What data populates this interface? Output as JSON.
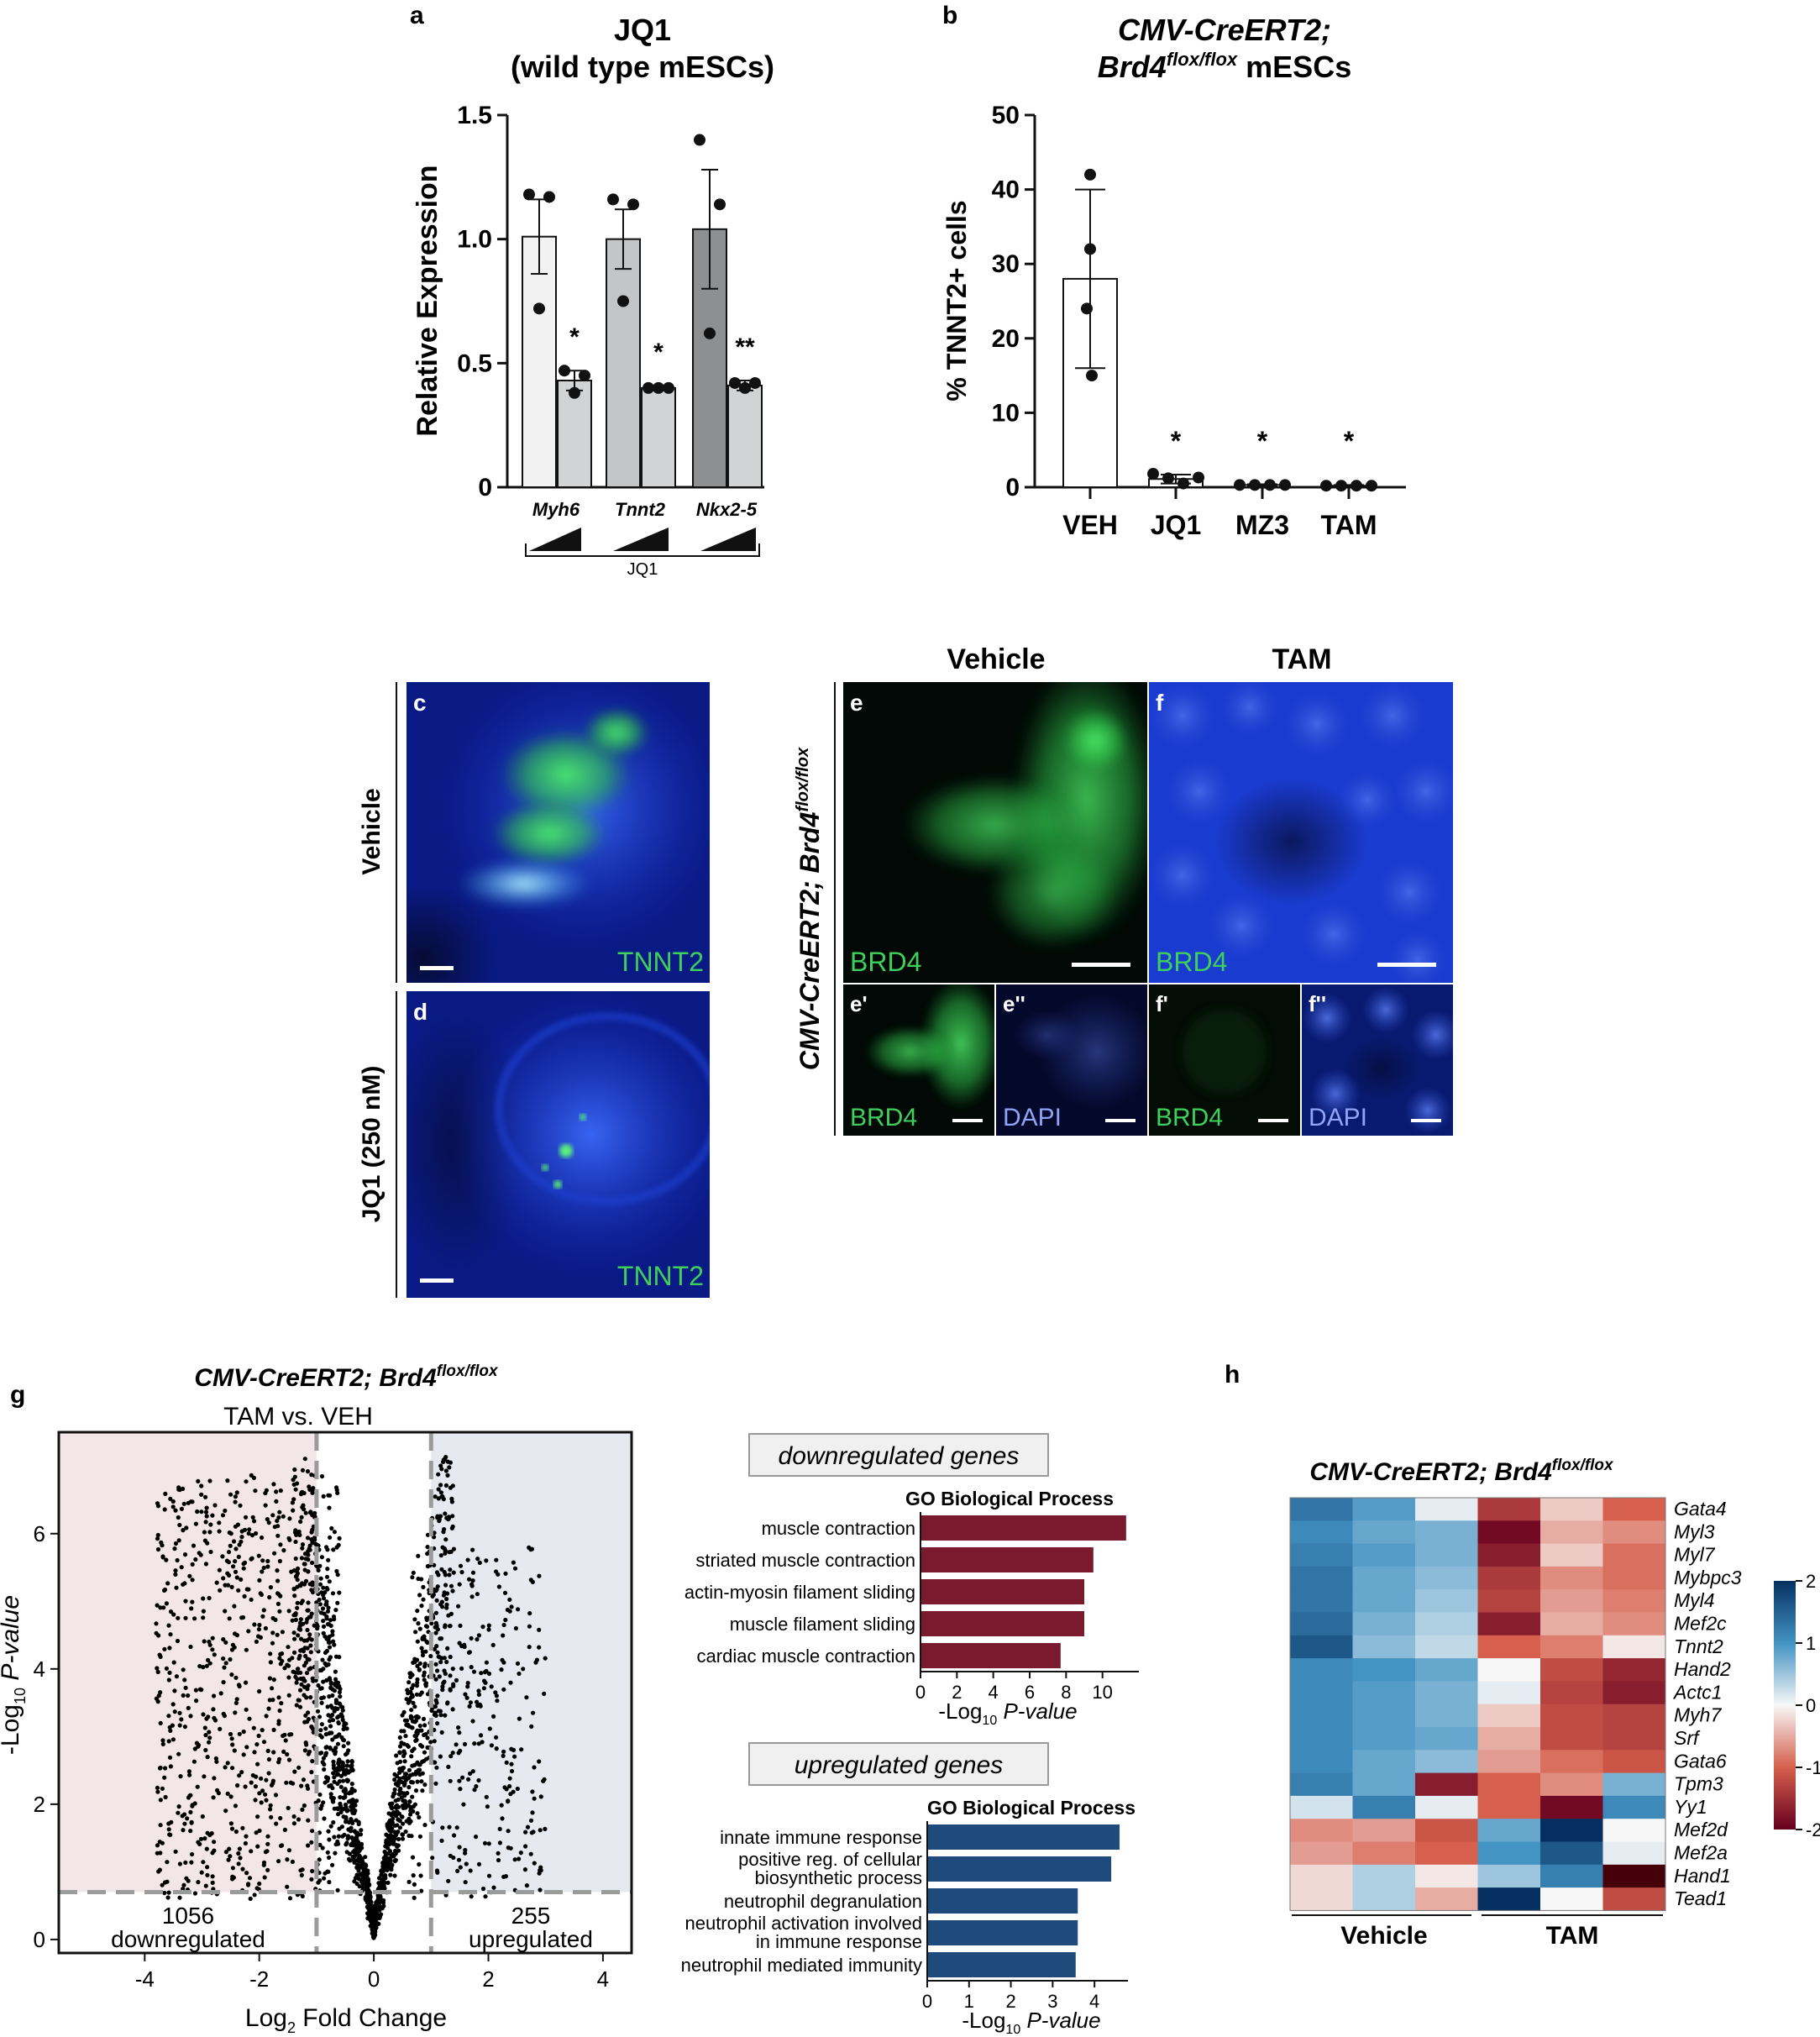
{
  "panel_a": {
    "letter": "a",
    "title_line1": "JQ1",
    "title_line2": "(wild type mESCs)",
    "ylabel": "Relative Expression",
    "yticks": [
      "0",
      "0.5",
      "1.0",
      "1.5"
    ],
    "groups": [
      "Myh6",
      "Tnnt2",
      "Nkx2-5"
    ],
    "bracket_label": "JQ1",
    "sig": [
      "*",
      "*",
      "**"
    ]
  },
  "panel_b": {
    "letter": "b",
    "title_line1": "CMV-CreERT2;",
    "title_line2_a": "Brd4",
    "title_line2_sup": "flox/flox",
    "title_line2_b": " mESCs",
    "ylabel": "% TNNT2+ cells",
    "yticks": [
      "0",
      "10",
      "20",
      "30",
      "40",
      "50"
    ],
    "categories": [
      "VEH",
      "JQ1",
      "MZ3",
      "TAM"
    ],
    "sig": [
      "*",
      "*",
      "*"
    ]
  },
  "panel_cd": {
    "c_letter": "c",
    "d_letter": "d",
    "c_side": "Vehicle",
    "d_side": "JQ1 (250 nM)",
    "stain": "TNNT2"
  },
  "panel_ef": {
    "col_vehicle": "Vehicle",
    "col_tam": "TAM",
    "side_a": "CMV-CreERT2; Brd4",
    "side_sup": "flox/flox",
    "e": "e",
    "f": "f",
    "e1": "e'",
    "e2": "e''",
    "f1": "f'",
    "f2": "f''",
    "brd4": "BRD4",
    "dapi": "DAPI"
  },
  "panel_g": {
    "letter": "g",
    "title_a": "CMV-CreERT2; Brd4",
    "title_sup": "flox/flox",
    "subtitle": "TAM vs. VEH",
    "ylabel_a": "-Log",
    "ylabel_sub": "10",
    "ylabel_b": " P-value",
    "xlabel_a": "Log",
    "xlabel_sub": "2",
    "xlabel_b": " Fold Change",
    "xticks": [
      "-4",
      "-2",
      "0",
      "2",
      "4"
    ],
    "yticks": [
      "0",
      "2",
      "4",
      "6"
    ],
    "down_count": "1056",
    "down_label": "downregulated",
    "up_count": "255",
    "up_label": "upregulated",
    "down_box": "downregulated genes",
    "up_box": "upregulated genes",
    "go_title": "GO Biological Process",
    "go_xlabel_a": "-Log",
    "go_xlabel_sub": "10",
    "go_xlabel_b": " P-value",
    "go_down_ticks": [
      "0",
      "2",
      "4",
      "6",
      "8",
      "10"
    ],
    "go_up_ticks": [
      "0",
      "1",
      "2",
      "3",
      "4"
    ],
    "go_up_labels": [
      [
        "innate immune response"
      ],
      [
        "positive reg. of cellular",
        "biosynthetic process"
      ],
      [
        "neutrophil degranulation"
      ],
      [
        "neutrophil activation involved",
        "in immune response"
      ],
      [
        "neutrophil mediated immunity"
      ]
    ]
  },
  "panel_h": {
    "letter": "h",
    "title_a": "CMV-CreERT2; Brd4",
    "title_sup": "flox/flox",
    "group_vehicle": "Vehicle",
    "group_tam": "TAM",
    "scale_ticks": [
      "2",
      "1",
      "0",
      "-1",
      "-2"
    ]
  },
  "colors": {
    "bar_a": [
      "#f1f2f1",
      "#c4c5c6",
      "#8d8f91"
    ],
    "bar_a2": "#d2d3d4",
    "go_down": "#7b1a2e",
    "go_up": "#1f4a7c",
    "volcano_down_bg": "#f2e6e9",
    "volcano_up_bg": "#e6e9ef"
  },
  "chart_data": [
    {
      "type": "bar",
      "panel": "a",
      "categories": [
        "Myh6",
        "Tnnt2",
        "Nkx2-5"
      ],
      "series": [
        {
          "values": [
            1.01,
            1.0,
            1.04
          ],
          "errors": [
            0.15,
            0.12,
            0.24
          ],
          "points": [
            [
              1.18,
              1.17,
              0.72
            ],
            [
              1.16,
              1.14,
              0.75
            ],
            [
              1.4,
              1.14,
              0.62
            ]
          ]
        },
        {
          "values": [
            0.43,
            0.4,
            0.41
          ],
          "errors": [
            0.04,
            0.01,
            0.02
          ],
          "points": [
            [
              0.47,
              0.45,
              0.38
            ],
            [
              0.4,
              0.4,
              0.4
            ],
            [
              0.42,
              0.42,
              0.4
            ]
          ]
        }
      ],
      "ylim": [
        0,
        1.5
      ]
    },
    {
      "type": "bar",
      "panel": "b",
      "categories": [
        "VEH",
        "JQ1",
        "MZ3",
        "TAM"
      ],
      "values": [
        28,
        1.1,
        0.3,
        0.2
      ],
      "errors": [
        12,
        0.6,
        0.1,
        0.1
      ],
      "points": [
        [
          42,
          32,
          24,
          15
        ],
        [
          1.8,
          1.2,
          0.5,
          1.3
        ],
        [
          0.3,
          0.3,
          0.3,
          0.3
        ],
        [
          0.2,
          0.2,
          0.2,
          0.2
        ]
      ],
      "ylim": [
        0,
        50
      ]
    },
    {
      "type": "scatter",
      "panel": "g",
      "xlim": [
        -5.5,
        4.5
      ],
      "ylim": [
        -0.2,
        7.5
      ],
      "thresholds": {
        "x": [
          -1,
          1
        ],
        "y": 0.7
      }
    },
    {
      "type": "bar",
      "panel": "g-down",
      "categories": [
        "muscle contraction",
        "striated muscle contraction",
        "actin-myosin filament sliding",
        "muscle filament sliding",
        "cardiac muscle contraction"
      ],
      "values": [
        11.3,
        9.5,
        9.0,
        9.0,
        7.7
      ],
      "xlim": [
        0,
        12
      ]
    },
    {
      "type": "bar",
      "panel": "g-up",
      "categories": [
        "innate immune response",
        "positive reg. of cellular biosynthetic process",
        "neutrophil degranulation",
        "neutrophil activation involved in immune response",
        "neutrophil mediated immunity"
      ],
      "values": [
        4.6,
        4.4,
        3.6,
        3.6,
        3.55
      ],
      "xlim": [
        0,
        4.8
      ]
    },
    {
      "type": "heatmap",
      "panel": "h",
      "rows": [
        "Gata4",
        "Myl3",
        "Myl7",
        "Mybpc3",
        "Myl4",
        "Mef2c",
        "Tnnt2",
        "Hand2",
        "Actc1",
        "Myh7",
        "Srf",
        "Gata6",
        "Tpm3",
        "Yy1",
        "Mef2d",
        "Mef2a",
        "Hand1",
        "Tead1"
      ],
      "columns": [
        "Vehicle",
        "Vehicle",
        "Vehicle",
        "TAM",
        "TAM",
        "TAM"
      ],
      "values": [
        [
          1.3,
          0.9,
          0.1,
          -1.4,
          -0.3,
          -1.0
        ],
        [
          1.1,
          0.8,
          0.7,
          -1.9,
          -0.5,
          -0.7
        ],
        [
          1.2,
          0.9,
          0.7,
          -1.7,
          -0.3,
          -0.9
        ],
        [
          1.3,
          0.8,
          0.6,
          -1.4,
          -0.7,
          -0.9
        ],
        [
          1.3,
          0.8,
          0.5,
          -1.3,
          -0.6,
          -0.8
        ],
        [
          1.4,
          0.7,
          0.4,
          -1.7,
          -0.5,
          -0.7
        ],
        [
          1.6,
          0.6,
          0.3,
          -1.0,
          -0.8,
          -0.1
        ],
        [
          1.1,
          1.0,
          0.8,
          0.0,
          -1.2,
          -1.6
        ],
        [
          1.1,
          0.9,
          0.7,
          0.1,
          -1.3,
          -1.7
        ],
        [
          1.1,
          0.9,
          0.7,
          -0.3,
          -1.2,
          -1.3
        ],
        [
          1.1,
          0.9,
          0.8,
          -0.5,
          -1.2,
          -1.3
        ],
        [
          1.1,
          0.8,
          0.6,
          -0.6,
          -0.9,
          -1.1
        ],
        [
          1.2,
          0.8,
          -1.7,
          -1.0,
          -0.7,
          0.7
        ],
        [
          0.2,
          1.2,
          0.1,
          -1.0,
          -1.9,
          1.1
        ],
        [
          -0.7,
          -0.6,
          -1.1,
          0.8,
          2.0,
          0.0
        ],
        [
          -0.6,
          -0.8,
          -1.0,
          1.0,
          1.6,
          0.1
        ],
        [
          -0.2,
          0.4,
          -0.1,
          0.5,
          1.2,
          -2.5
        ],
        [
          -0.2,
          0.4,
          -0.5,
          2.0,
          0.0,
          -1.2
        ]
      ],
      "scale": [
        -2,
        2
      ]
    }
  ]
}
